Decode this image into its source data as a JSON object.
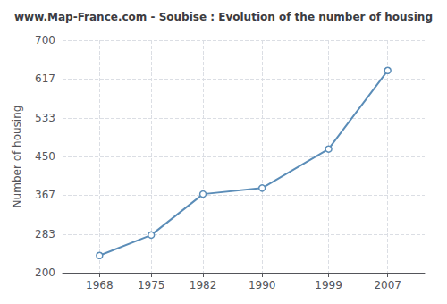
{
  "chart_data": {
    "type": "line",
    "title": "www.Map-France.com - Soubise : Evolution of the number of housing",
    "ylabel": "Number of housing",
    "x": [
      1968,
      1975,
      1982,
      1990,
      1999,
      2007
    ],
    "values": [
      237,
      281,
      369,
      382,
      466,
      635
    ],
    "xlim": [
      1963,
      2012
    ],
    "xticks": [
      1968,
      1975,
      1982,
      1990,
      1999,
      2007
    ],
    "ylim": [
      200,
      700
    ],
    "yticks": [
      200,
      283,
      367,
      450,
      533,
      617,
      700
    ],
    "color": "#5b8db8",
    "marker": "circle",
    "grid": true
  }
}
